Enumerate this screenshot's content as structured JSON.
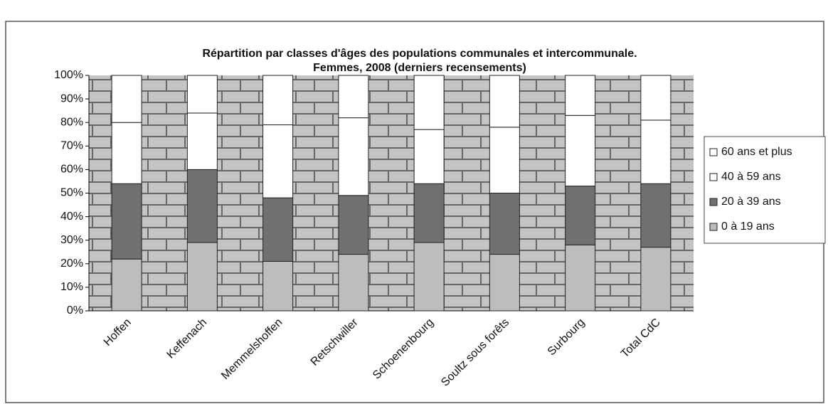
{
  "chart_data": {
    "type": "stacked_bar",
    "title": [
      "Répartition par classes d'âges des populations communales et intercommunale.",
      "Femmes, 2008 (derniers recensements)"
    ],
    "categories": [
      "Hoffen",
      "Keffenach",
      "Memmelshoffen",
      "Retschwiller",
      "Schoenenbourg",
      "Soultz sous forêts",
      "Surbourg",
      "Total CdC"
    ],
    "series": [
      {
        "name": "0 à 19 ans",
        "color": "#bdbdbd",
        "values": [
          22,
          29,
          21,
          24,
          29,
          24,
          28,
          27
        ]
      },
      {
        "name": "20 à 39 ans",
        "color": "#707070",
        "values": [
          32,
          31,
          27,
          25,
          25,
          26,
          25,
          27
        ]
      },
      {
        "name": "40 à 59 ans",
        "color": "#ffffff",
        "values": [
          26,
          24,
          31,
          33,
          23,
          28,
          30,
          27
        ]
      },
      {
        "name": "60 ans et plus",
        "color": "#ffffff",
        "values": [
          20,
          16,
          21,
          18,
          23,
          22,
          17,
          19
        ]
      }
    ],
    "ylim": [
      0,
      100
    ],
    "yticks": [
      {
        "value": 0,
        "label": "0%"
      },
      {
        "value": 10,
        "label": "10%"
      },
      {
        "value": 20,
        "label": "20%"
      },
      {
        "value": 30,
        "label": "30%"
      },
      {
        "value": 40,
        "label": "40%"
      },
      {
        "value": 50,
        "label": "50%"
      },
      {
        "value": 60,
        "label": "60%"
      },
      {
        "value": 70,
        "label": "70%"
      },
      {
        "value": 80,
        "label": "80%"
      },
      {
        "value": 90,
        "label": "90%"
      },
      {
        "value": 100,
        "label": "100%"
      }
    ],
    "legend": "right"
  }
}
